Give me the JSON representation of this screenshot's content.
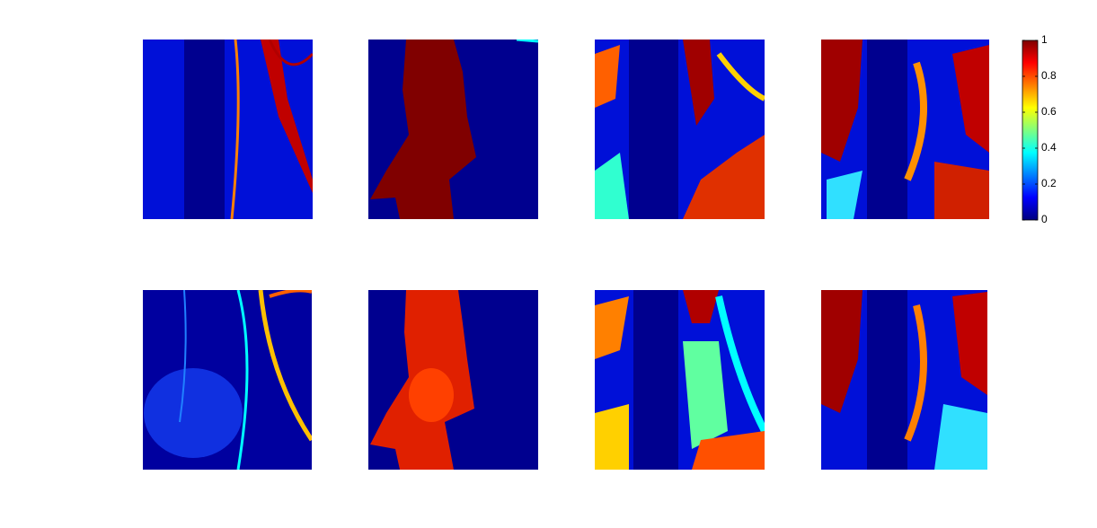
{
  "colorbar": {
    "lim": [
      0,
      1
    ],
    "ticks": [
      0,
      0.2,
      0.4,
      0.6,
      0.8,
      1
    ]
  }
}
